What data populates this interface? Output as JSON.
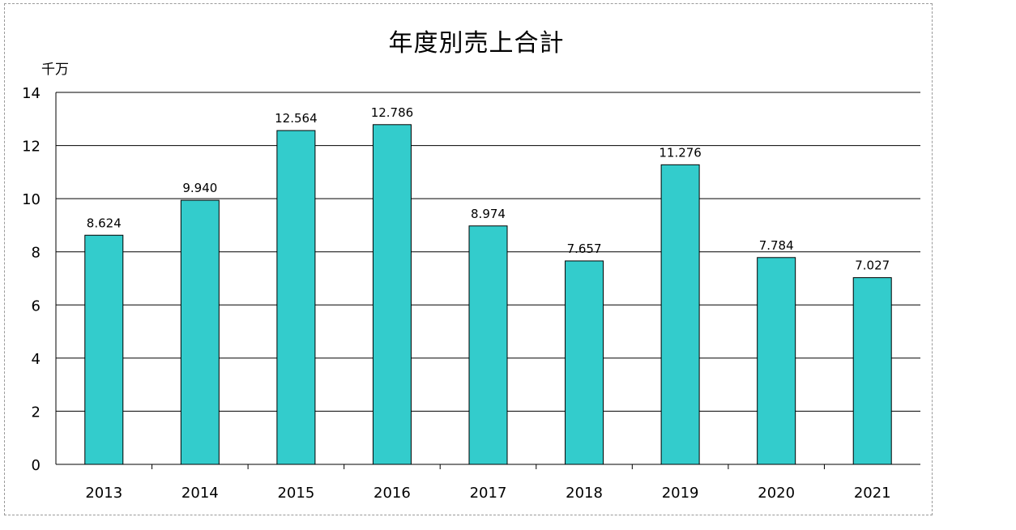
{
  "chart_data": {
    "type": "bar",
    "title": "年度別売上合計",
    "unit_label": "千万",
    "xlabel": "",
    "ylabel": "",
    "categories": [
      "2013",
      "2014",
      "2015",
      "2016",
      "2017",
      "2018",
      "2019",
      "2020",
      "2021"
    ],
    "values": [
      8.624,
      9.94,
      12.564,
      12.786,
      8.974,
      7.657,
      11.276,
      7.784,
      7.027
    ],
    "data_labels": [
      "8.624",
      "9.940",
      "12.564",
      "12.786",
      "8.974",
      "7.657",
      "11.276",
      "7.784",
      "7.027"
    ],
    "ylim": [
      0,
      14
    ],
    "yticks": [
      0,
      2,
      4,
      6,
      8,
      10,
      12,
      14
    ],
    "grid": true,
    "legend": "none",
    "colors": {
      "bar_fill": "#33CCCC",
      "bar_stroke": "#000000",
      "grid": "#000000"
    }
  }
}
